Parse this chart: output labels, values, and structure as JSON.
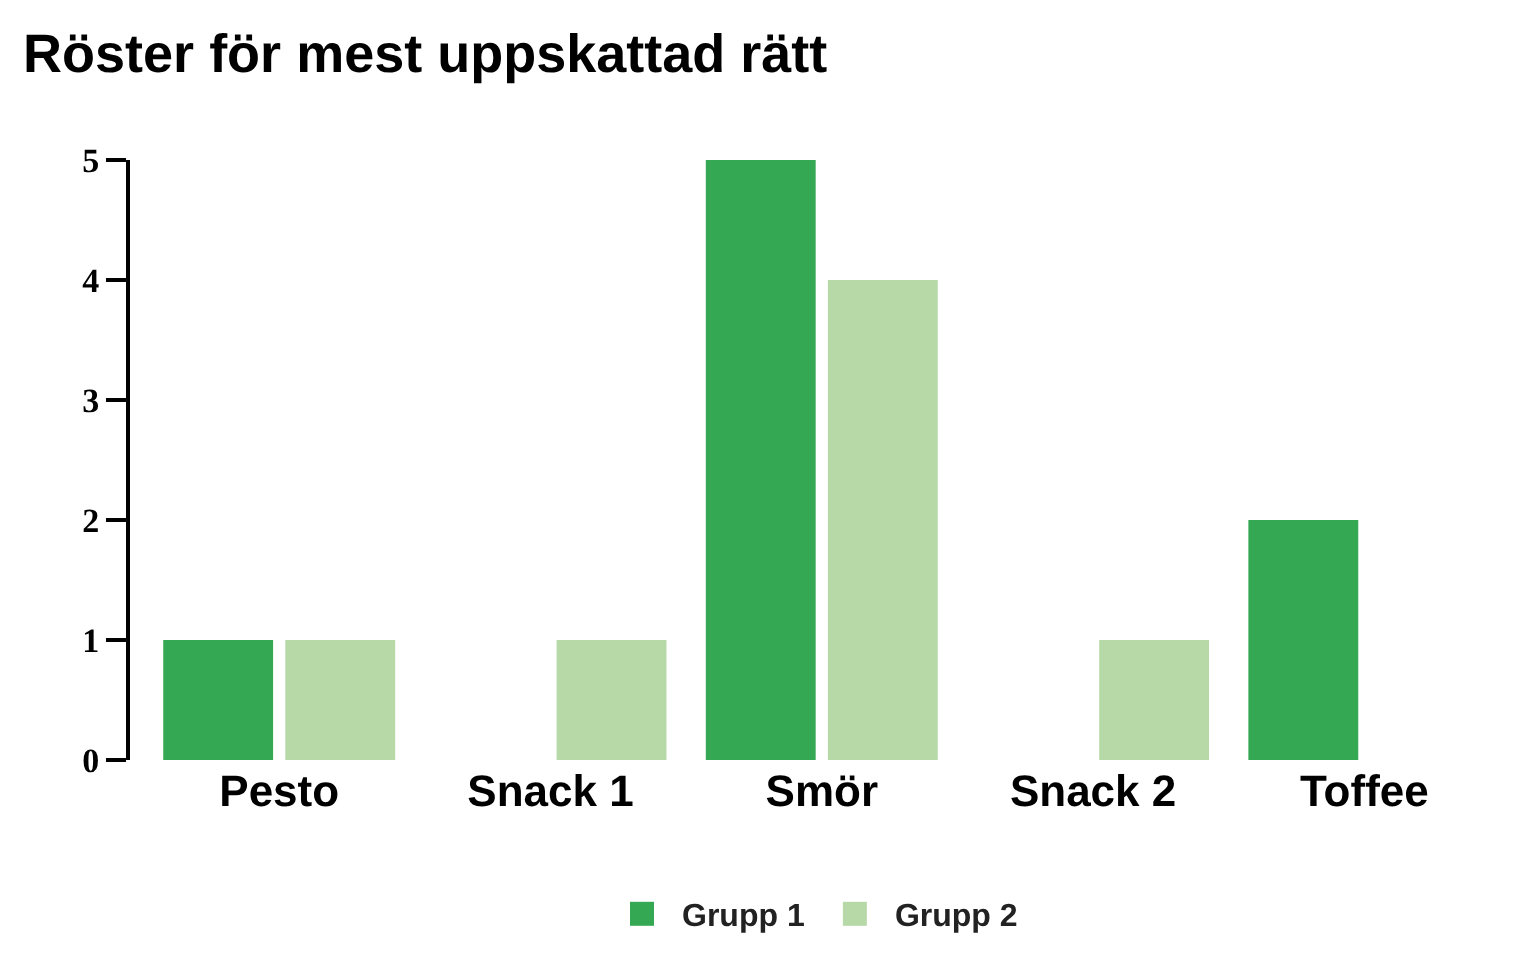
{
  "chart_data": {
    "type": "bar",
    "title": "Röster för mest uppskattad rätt",
    "categories": [
      "Pesto",
      "Snack 1",
      "Smör",
      "Snack 2",
      "Toffee"
    ],
    "series": [
      {
        "name": "Grupp 1",
        "color": "#34a853",
        "values": [
          1,
          0,
          5,
          0,
          2
        ]
      },
      {
        "name": "Grupp 2",
        "color": "#b7d9a8",
        "values": [
          1,
          1,
          4,
          1,
          0
        ]
      }
    ],
    "ylim": [
      0,
      5
    ],
    "yticks": [
      0,
      1,
      2,
      3,
      4,
      5
    ],
    "legend": "bottom"
  }
}
